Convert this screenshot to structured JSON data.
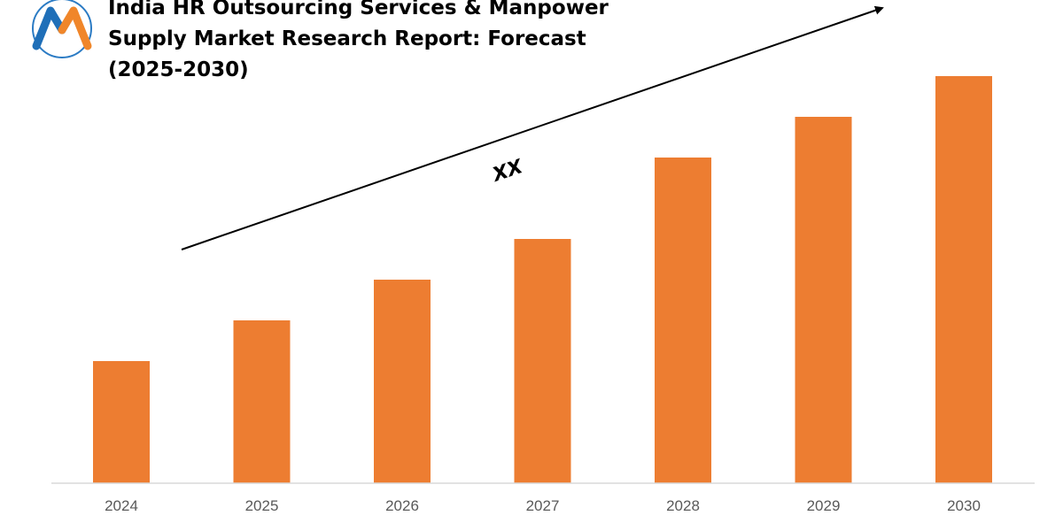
{
  "logo": {
    "letter": "M",
    "colors": {
      "blue": "#1f6fb8",
      "orange": "#f0862a"
    }
  },
  "chart_data": {
    "type": "bar",
    "title_lines": [
      "India HR Outsourcing Services & Manpower",
      "Supply Market Research Report: Forecast",
      "(2025-2030)"
    ],
    "categories": [
      "2024",
      "2025",
      "2026",
      "2027",
      "2028",
      "2029",
      "2030"
    ],
    "values": [
      30,
      40,
      50,
      60,
      80,
      90,
      100
    ],
    "ylim": [
      0,
      100
    ],
    "bar_color": "#ed7d31",
    "axis_color": "#d9d9d9",
    "gridlines": false,
    "trend_label": "XX",
    "trend_arrow": true
  }
}
